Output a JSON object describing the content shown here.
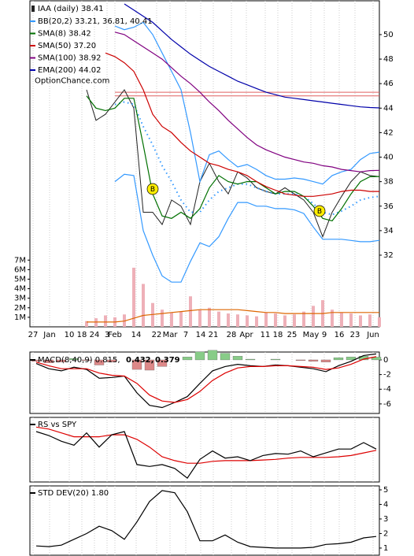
{
  "chart_data": [
    {
      "type": "line",
      "title": "IAA (daily) 38.41",
      "watermark": "OptionChance.com",
      "xlim": [
        0,
        111
      ],
      "xticks": [
        {
          "value": 1,
          "label": "27"
        },
        {
          "value": 6.25,
          "label": "Jan"
        },
        {
          "value": 12.5,
          "label": "10"
        },
        {
          "value": 16.5,
          "label": "18"
        },
        {
          "value": 20.5,
          "label": "24"
        },
        {
          "value": 24.5,
          "label": "3"
        },
        {
          "value": 27,
          "label": "Feb"
        },
        {
          "value": 33.75,
          "label": "14"
        },
        {
          "value": 40.25,
          "label": "22"
        },
        {
          "value": 44.5,
          "label": "Mar"
        },
        {
          "value": 49.5,
          "label": "7"
        },
        {
          "value": 54.25,
          "label": "14"
        },
        {
          "value": 58.25,
          "label": "21"
        },
        {
          "value": 64,
          "label": "28"
        },
        {
          "value": 68.75,
          "label": "Apr"
        },
        {
          "value": 74.75,
          "label": "11"
        },
        {
          "value": 78.75,
          "label": "18"
        },
        {
          "value": 83.25,
          "label": "25"
        },
        {
          "value": 89.25,
          "label": "May"
        },
        {
          "value": 93.5,
          "label": "9"
        },
        {
          "value": 98.25,
          "label": "16"
        },
        {
          "value": 103.25,
          "label": "23"
        },
        {
          "value": 109,
          "label": "Jun"
        }
      ],
      "grid": true,
      "ylim": [
        26.15,
        52.76
      ],
      "yticks": [
        32,
        34,
        36,
        38,
        40,
        42,
        44,
        46,
        48,
        50
      ],
      "x": [
        18,
        21,
        24,
        27,
        30,
        33,
        36,
        39,
        42,
        45,
        48,
        51,
        54,
        57,
        60,
        63,
        66,
        69,
        72,
        75,
        78,
        81,
        84,
        87,
        90,
        93,
        96,
        99,
        102,
        105,
        108,
        111
      ],
      "series": [
        {
          "name": "IAA (daily) 38.41",
          "color": "#222222",
          "legend": false,
          "values": [
            45.5,
            43,
            43.5,
            44.5,
            45.5,
            44,
            35.5,
            35.5,
            34.5,
            36.5,
            36,
            34.5,
            38,
            39.5,
            38,
            37,
            38.8,
            38.3,
            37.5,
            37.2,
            37,
            37.5,
            37,
            36.5,
            35.5,
            33.5,
            35.5,
            36.8,
            38,
            38.8,
            38.5,
            38.41
          ]
        },
        {
          "name": "BB(20,2) 33.21, 36.81, 40.41",
          "color": "#3399ff",
          "upper": [
            null,
            null,
            null,
            50.7,
            50.4,
            50.6,
            51,
            50,
            48.5,
            47,
            45.5,
            42,
            38,
            40.2,
            40.5,
            39.8,
            39.2,
            39.4,
            39,
            38.5,
            38.2,
            38.2,
            38.3,
            38.2,
            38,
            37.8,
            38.5,
            38.8,
            39,
            39.8,
            40.3,
            40.41
          ],
          "middle": [
            null,
            null,
            null,
            44.3,
            44.5,
            44.3,
            42.5,
            41,
            39.3,
            38,
            36.5,
            35.5,
            35.5,
            36.5,
            37.2,
            37.5,
            37.8,
            37.8,
            37.5,
            37.2,
            37,
            37,
            37,
            36.8,
            36.2,
            35.5,
            35.3,
            35.6,
            36,
            36.5,
            36.7,
            36.81
          ],
          "lower": [
            null,
            null,
            null,
            38,
            38.6,
            38.5,
            34,
            32,
            30.3,
            29.8,
            29.8,
            31.5,
            33,
            32.7,
            33.5,
            35,
            36.3,
            36.3,
            36,
            36,
            35.8,
            35.8,
            35.7,
            35.4,
            34.3,
            33.3,
            33.3,
            33.3,
            33.2,
            33.1,
            33.1,
            33.21
          ]
        },
        {
          "name": "SMA(8) 38.42",
          "color": "#007000",
          "values": [
            45,
            44,
            43.8,
            44,
            44.8,
            44.8,
            41,
            37,
            35.2,
            35,
            35.5,
            35,
            35.8,
            37.5,
            38.5,
            38,
            37.8,
            38,
            38,
            37.5,
            37,
            37.2,
            37.2,
            36.8,
            36,
            35,
            34.8,
            35.8,
            37,
            38,
            38.4,
            38.42
          ]
        },
        {
          "name": "SMA(50) 37.20",
          "color": "#cc0000",
          "values": [
            null,
            null,
            48.5,
            48.2,
            47.7,
            47,
            45.5,
            43.5,
            42.5,
            42,
            41.2,
            40.5,
            40,
            39.5,
            39.3,
            39,
            38.8,
            38.5,
            38,
            37.6,
            37.3,
            37,
            36.9,
            36.8,
            36.8,
            36.9,
            37,
            37.2,
            37.3,
            37.3,
            37.2,
            37.2
          ]
        },
        {
          "name": "SMA(100) 38.92",
          "color": "#800080",
          "values": [
            null,
            null,
            null,
            50.2,
            50,
            49.5,
            49,
            48.5,
            48,
            47.3,
            46.6,
            46,
            45.3,
            44.5,
            43.8,
            43,
            42.3,
            41.6,
            41,
            40.6,
            40.3,
            40,
            39.8,
            39.6,
            39.5,
            39.3,
            39.2,
            39,
            38.9,
            38.8,
            38.9,
            38.92
          ]
        },
        {
          "name": "EMA(200) 44.02",
          "color": "#0000aa",
          "values": [
            null,
            null,
            null,
            null,
            52.5,
            52,
            51.5,
            51,
            50.3,
            49.6,
            49,
            48.4,
            47.9,
            47.4,
            47,
            46.6,
            46.2,
            45.9,
            45.6,
            45.3,
            45.1,
            44.9,
            44.8,
            44.7,
            44.6,
            44.5,
            44.4,
            44.3,
            44.2,
            44.1,
            44.05,
            44.02
          ]
        }
      ],
      "hlines": [
        45.3,
        45.0
      ],
      "hline_color": "#e06060",
      "annotations": [
        {
          "x": 39,
          "y": 37.4,
          "label": "B"
        },
        {
          "x": 92,
          "y": 35.6,
          "label": "B"
        }
      ],
      "annotation_color": "#ffee00"
    },
    {
      "type": "bar",
      "xlim": [
        0,
        111
      ],
      "ylim": [
        0,
        34.2
      ],
      "yaxis_side": "left",
      "yticks": [
        {
          "value": 1,
          "label": "1M"
        },
        {
          "value": 2,
          "label": "2M"
        },
        {
          "value": 3,
          "label": "3M"
        },
        {
          "value": 4,
          "label": "4M"
        },
        {
          "value": 5,
          "label": "5M"
        },
        {
          "value": 6,
          "label": "6M"
        },
        {
          "value": 7,
          "label": "7M"
        }
      ],
      "x": [
        18,
        21,
        24,
        27,
        30,
        33,
        36,
        39,
        42,
        45,
        48,
        51,
        54,
        57,
        60,
        63,
        66,
        69,
        72,
        75,
        78,
        81,
        84,
        87,
        90,
        93,
        96,
        99,
        102,
        105,
        108,
        111
      ],
      "values": [
        0.6,
        0.9,
        1.2,
        1.0,
        1.3,
        6.2,
        4.5,
        2.5,
        1.8,
        1.5,
        1.6,
        3.2,
        1.8,
        2.0,
        1.6,
        1.4,
        1.3,
        1.2,
        1.1,
        1.5,
        1.4,
        1.2,
        1.3,
        1.6,
        2.2,
        2.8,
        1.8,
        1.5,
        1.4,
        1.2,
        1.3,
        1.0
      ],
      "color": "#eeb0b8",
      "average": {
        "color": "#dd6600",
        "values": [
          0.5,
          0.5,
          0.5,
          0.5,
          0.6,
          0.9,
          1.2,
          1.3,
          1.4,
          1.5,
          1.6,
          1.7,
          1.8,
          1.8,
          1.8,
          1.8,
          1.8,
          1.7,
          1.6,
          1.5,
          1.5,
          1.4,
          1.4,
          1.4,
          1.4,
          1.4,
          1.5,
          1.5,
          1.5,
          1.5,
          1.5,
          1.5
        ]
      }
    },
    {
      "type": "line",
      "xlim": [
        0,
        111
      ],
      "ylim": [
        -7.3,
        1.07
      ],
      "yticks": [
        0,
        -2,
        -4,
        -6
      ],
      "x": [
        2,
        6,
        10,
        14,
        18,
        22,
        26,
        30,
        34,
        38,
        42,
        46,
        50,
        54,
        58,
        62,
        66,
        70,
        74,
        78,
        82,
        86,
        90,
        94,
        98,
        102,
        106,
        110
      ],
      "series": [
        {
          "name": "MACD(8,40,9) 0.815,",
          "color": "#000000",
          "values": [
            -0.5,
            -1.2,
            -1.5,
            -1,
            -1.3,
            -2.5,
            -2.4,
            -2.2,
            -4.5,
            -6.2,
            -6.5,
            -5.8,
            -5,
            -3.2,
            -1.5,
            -0.9,
            -0.6,
            -0.8,
            -0.9,
            -0.7,
            -0.8,
            -1,
            -1.2,
            -1.6,
            -0.8,
            -0.2,
            0.6,
            0.815
          ]
        },
        {
          "name": "0.432,",
          "color": "#dd0000",
          "values": [
            -0.3,
            -0.8,
            -1.2,
            -1.2,
            -1.2,
            -1.8,
            -2.1,
            -2.2,
            -3.2,
            -4.8,
            -5.6,
            -5.8,
            -5.4,
            -4.3,
            -2.8,
            -1.8,
            -1.1,
            -0.9,
            -0.9,
            -0.8,
            -0.8,
            -0.9,
            -1,
            -1.3,
            -1.1,
            -0.6,
            0.1,
            0.432
          ]
        }
      ],
      "histogram": {
        "name": "0.379",
        "name_color": "#2255cc",
        "positive_color": "#88cc88",
        "negative_color": "#dd8888",
        "values": [
          -0.2,
          -0.4,
          -0.3,
          0.2,
          -0.1,
          -0.7,
          -0.3,
          0,
          -1.3,
          -1.4,
          -0.9,
          0,
          0.4,
          1.1,
          1.3,
          0.9,
          0.5,
          0.1,
          0,
          0.1,
          0,
          -0.1,
          -0.2,
          -0.3,
          0.3,
          0.4,
          0.5,
          0.379
        ]
      }
    },
    {
      "type": "line",
      "xlim": [
        0,
        111
      ],
      "ylim": [
        0,
        100
      ],
      "x": [
        2,
        6,
        10,
        14,
        18,
        22,
        26,
        30,
        34,
        38,
        42,
        46,
        50,
        54,
        58,
        62,
        66,
        70,
        74,
        78,
        82,
        86,
        90,
        94,
        98,
        102,
        106,
        110
      ],
      "series": [
        {
          "name": "RS vs SPY",
          "color": "#000000",
          "values": [
            78,
            72,
            63,
            57,
            76,
            54,
            73,
            78,
            27,
            24,
            27,
            21,
            6,
            35,
            48,
            37,
            39,
            33,
            41,
            44,
            43,
            48,
            39,
            45,
            51,
            51,
            61,
            51
          ]
        }
      ],
      "average": {
        "color": "#dd0000",
        "values": [
          85,
          82,
          76,
          70,
          70,
          70,
          73,
          73,
          66,
          54,
          39,
          33,
          29,
          29,
          32,
          33,
          33,
          33,
          34,
          35,
          37,
          38,
          38,
          38,
          39,
          41,
          45,
          49
        ]
      }
    },
    {
      "type": "line",
      "xlim": [
        0,
        111
      ],
      "ylim": [
        0.51,
        5.27
      ],
      "yticks": [
        1,
        2,
        3,
        4,
        5
      ],
      "x": [
        2,
        6,
        10,
        14,
        18,
        22,
        26,
        30,
        34,
        38,
        42,
        46,
        50,
        54,
        58,
        62,
        66,
        70,
        74,
        78,
        82,
        86,
        90,
        94,
        98,
        102,
        106,
        110
      ],
      "series": [
        {
          "name": "STD DEV(20) 1.80",
          "color": "#000000",
          "values": [
            1.15,
            1.1,
            1.2,
            1.6,
            2.0,
            2.5,
            2.2,
            1.6,
            2.8,
            4.2,
            4.95,
            4.8,
            3.5,
            1.5,
            1.5,
            1.9,
            1.4,
            1.1,
            1.05,
            1.0,
            1.0,
            1.0,
            1.05,
            1.25,
            1.3,
            1.4,
            1.7,
            1.8
          ]
        }
      ]
    }
  ]
}
